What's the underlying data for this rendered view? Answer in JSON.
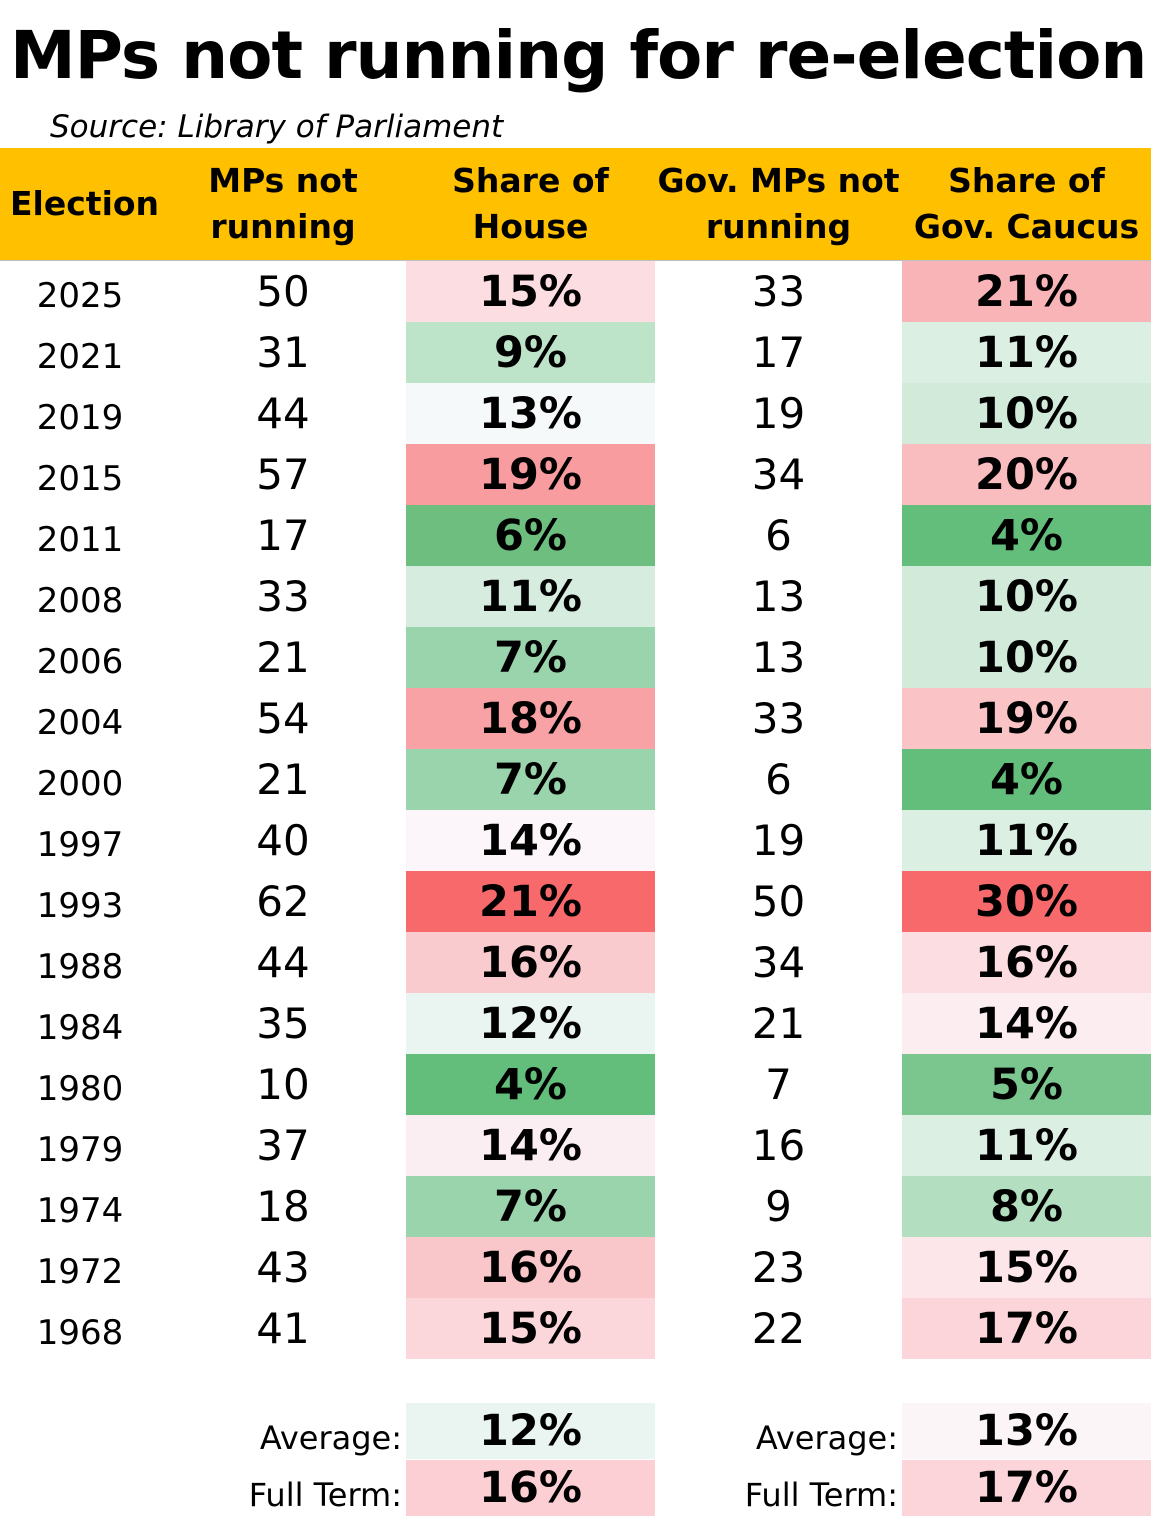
{
  "title": "MPs not running for re-election",
  "source": "Source: Library of Parliament",
  "chart_data": {
    "type": "table",
    "columns": [
      "Election",
      "MPs not\nrunning",
      "Share of\nHouse",
      "Gov. MPs not\nrunning",
      "Share of\nGov. Caucus"
    ],
    "rows": [
      {
        "election": "2025",
        "mps": "50",
        "share_house": "15%",
        "gov_mps": "33",
        "share_gov": "21%"
      },
      {
        "election": "2021",
        "mps": "31",
        "share_house": "9%",
        "gov_mps": "17",
        "share_gov": "11%"
      },
      {
        "election": "2019",
        "mps": "44",
        "share_house": "13%",
        "gov_mps": "19",
        "share_gov": "10%"
      },
      {
        "election": "2015",
        "mps": "57",
        "share_house": "19%",
        "gov_mps": "34",
        "share_gov": "20%"
      },
      {
        "election": "2011",
        "mps": "17",
        "share_house": "6%",
        "gov_mps": "6",
        "share_gov": "4%"
      },
      {
        "election": "2008",
        "mps": "33",
        "share_house": "11%",
        "gov_mps": "13",
        "share_gov": "10%"
      },
      {
        "election": "2006",
        "mps": "21",
        "share_house": "7%",
        "gov_mps": "13",
        "share_gov": "10%"
      },
      {
        "election": "2004",
        "mps": "54",
        "share_house": "18%",
        "gov_mps": "33",
        "share_gov": "19%"
      },
      {
        "election": "2000",
        "mps": "21",
        "share_house": "7%",
        "gov_mps": "6",
        "share_gov": "4%"
      },
      {
        "election": "1997",
        "mps": "40",
        "share_house": "14%",
        "gov_mps": "19",
        "share_gov": "11%"
      },
      {
        "election": "1993",
        "mps": "62",
        "share_house": "21%",
        "gov_mps": "50",
        "share_gov": "30%"
      },
      {
        "election": "1988",
        "mps": "44",
        "share_house": "16%",
        "gov_mps": "34",
        "share_gov": "16%"
      },
      {
        "election": "1984",
        "mps": "35",
        "share_house": "12%",
        "gov_mps": "21",
        "share_gov": "14%"
      },
      {
        "election": "1980",
        "mps": "10",
        "share_house": "4%",
        "gov_mps": "7",
        "share_gov": "5%"
      },
      {
        "election": "1979",
        "mps": "37",
        "share_house": "14%",
        "gov_mps": "16",
        "share_gov": "11%"
      },
      {
        "election": "1974",
        "mps": "18",
        "share_house": "7%",
        "gov_mps": "9",
        "share_gov": "8%"
      },
      {
        "election": "1972",
        "mps": "43",
        "share_house": "16%",
        "gov_mps": "23",
        "share_gov": "15%"
      },
      {
        "election": "1968",
        "mps": "41",
        "share_house": "15%",
        "gov_mps": "22",
        "share_gov": "17%"
      }
    ],
    "house_colors": [
      "#FCDDE2",
      "#BDE4C9",
      "#F5F9F9",
      "#F89C9F",
      "#6DBE7F",
      "#D6ECDF",
      "#9AD4AC",
      "#F8A2A6",
      "#9AD4AC",
      "#FCF6FA",
      "#F8696B",
      "#F9CBCE",
      "#EAF4F0",
      "#63BE7B",
      "#FBEEF3",
      "#9AD4AC",
      "#F9C6C9",
      "#FBD7DB"
    ],
    "gov_colors": [
      "#F9B4B7",
      "#DCEFE3",
      "#D1EADA",
      "#F9BCBF",
      "#63BE7B",
      "#D1EADA",
      "#D1EADA",
      "#FAC4C7",
      "#63BE7B",
      "#DCEFE3",
      "#F8696B",
      "#FCDEE2",
      "#FCEDF1",
      "#7AC68E",
      "#DCEFE3",
      "#B4DEC0",
      "#FCE6EA",
      "#FBD5D9"
    ],
    "footer": {
      "average_label": "Average:",
      "full_term_label": "Full Term:",
      "house_average": "12%",
      "house_full_term": "16%",
      "gov_average": "13%",
      "gov_full_term": "17%",
      "house_average_color": "#EAF4F0",
      "house_full_term_color": "#FBCFD3",
      "gov_average_color": "#FCF5F8",
      "gov_full_term_color": "#FBD5D9"
    },
    "header_color": "#FFC000"
  }
}
